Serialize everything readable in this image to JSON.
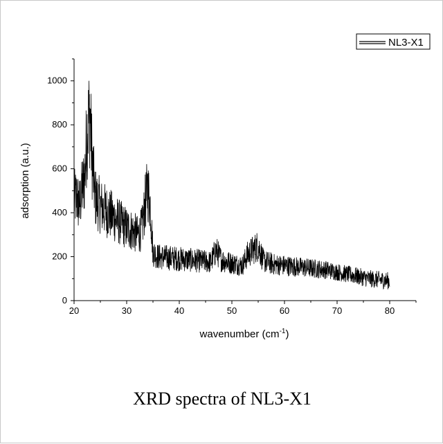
{
  "caption": "XRD spectra of NL3-X1",
  "chart_data": {
    "type": "line",
    "title": "",
    "xlabel": "wavenumber (cm",
    "xlabel_sup": "-1",
    "xlabel_tail": ")",
    "ylabel": "adsorption (a.u.)",
    "xlim": [
      20,
      85
    ],
    "ylim": [
      0,
      1100
    ],
    "x_ticks": [
      20,
      30,
      40,
      50,
      60,
      70,
      80
    ],
    "y_ticks": [
      0,
      200,
      400,
      600,
      800,
      1000
    ],
    "legend": {
      "position": "top-right",
      "entries": [
        "NL3-X1"
      ]
    },
    "grid": false,
    "series": [
      {
        "name": "NL3-X1",
        "color": "#000000",
        "x": [
          20,
          20.5,
          21,
          21.5,
          22,
          22.5,
          23,
          23.5,
          24,
          24.5,
          25,
          26,
          27,
          28,
          29,
          30,
          31,
          32,
          32.5,
          33,
          33.5,
          34,
          34.5,
          35,
          36,
          38,
          40,
          42,
          44,
          46,
          47,
          48,
          50,
          52,
          53,
          54,
          55,
          56,
          58,
          60,
          62,
          64,
          66,
          68,
          70,
          72,
          74,
          76,
          78,
          80
        ],
        "y": [
          460,
          470,
          430,
          500,
          560,
          780,
          850,
          620,
          470,
          450,
          430,
          410,
          390,
          370,
          350,
          330,
          320,
          300,
          310,
          340,
          440,
          510,
          430,
          220,
          200,
          195,
          190,
          185,
          180,
          175,
          230,
          185,
          170,
          160,
          210,
          230,
          250,
          180,
          165,
          160,
          155,
          150,
          145,
          140,
          130,
          120,
          110,
          100,
          95,
          90
        ]
      }
    ]
  }
}
